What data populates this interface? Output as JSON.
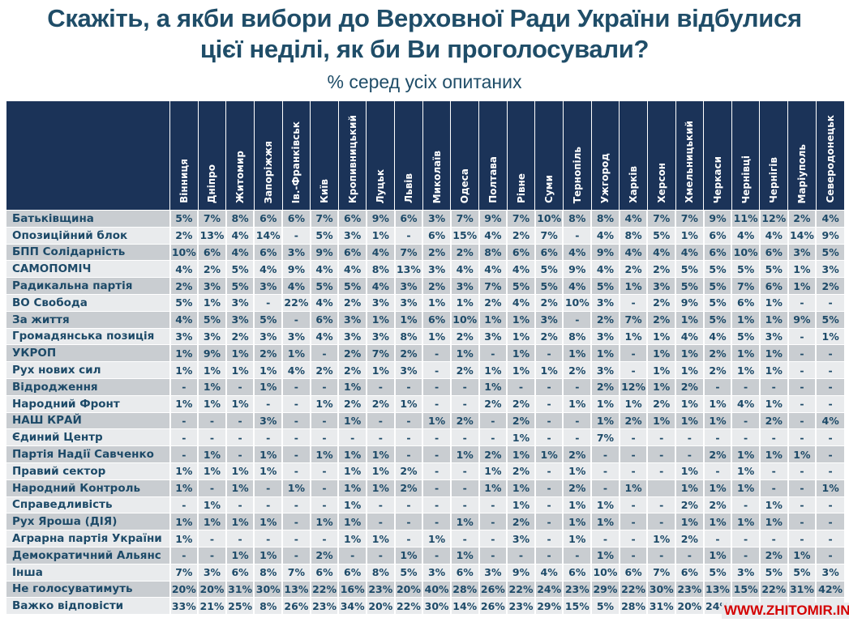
{
  "title_line1": "Скажіть, а якби вибори до Верховної Ради України відбулися",
  "title_line2": "цієї неділі, як би Ви проголосували?",
  "subtitle": "% серед усіх опитаних",
  "watermark": "WWW.ZHITOMIR.INFO",
  "chart_data": {
    "type": "table",
    "title": "Скажіть, а якби вибори до Верховної Ради України відбулися цієї неділі, як би Ви проголосували?",
    "subtitle": "% серед усіх опитаних",
    "columns": [
      "Вінниця",
      "Дніпро",
      "Житомир",
      "Запоріжжя",
      "Ів.-Франківськ",
      "Київ",
      "Кропивницький",
      "Луцьк",
      "Львів",
      "Миколаїв",
      "Одеса",
      "Полтава",
      "Рівне",
      "Суми",
      "Тернопіль",
      "Ужгород",
      "Харків",
      "Херсон",
      "Хмельницький",
      "Черкаси",
      "Чернівці",
      "Чернігів",
      "Маріуполь",
      "Северодонецьк"
    ],
    "rows": [
      {
        "label": "Батьківщина",
        "values": [
          "5%",
          "7%",
          "8%",
          "6%",
          "6%",
          "7%",
          "6%",
          "9%",
          "6%",
          "3%",
          "7%",
          "9%",
          "7%",
          "10%",
          "8%",
          "8%",
          "4%",
          "7%",
          "7%",
          "9%",
          "11%",
          "12%",
          "2%",
          "4%"
        ]
      },
      {
        "label": "Опозиційний блок",
        "values": [
          "2%",
          "13%",
          "4%",
          "14%",
          "-",
          "5%",
          "3%",
          "1%",
          "-",
          "6%",
          "15%",
          "4%",
          "2%",
          "7%",
          "-",
          "4%",
          "8%",
          "5%",
          "1%",
          "6%",
          "4%",
          "4%",
          "14%",
          "9%"
        ]
      },
      {
        "label": "БПП Солідарність",
        "values": [
          "10%",
          "6%",
          "4%",
          "6%",
          "3%",
          "9%",
          "6%",
          "4%",
          "7%",
          "2%",
          "2%",
          "8%",
          "6%",
          "6%",
          "4%",
          "9%",
          "4%",
          "4%",
          "4%",
          "6%",
          "10%",
          "6%",
          "3%",
          "5%"
        ]
      },
      {
        "label": "САМОПОМІЧ",
        "values": [
          "4%",
          "2%",
          "5%",
          "4%",
          "9%",
          "4%",
          "4%",
          "8%",
          "13%",
          "3%",
          "4%",
          "4%",
          "4%",
          "5%",
          "9%",
          "4%",
          "2%",
          "2%",
          "5%",
          "5%",
          "5%",
          "5%",
          "1%",
          "3%"
        ]
      },
      {
        "label": "Радикальна партія",
        "values": [
          "2%",
          "3%",
          "5%",
          "3%",
          "4%",
          "5%",
          "5%",
          "4%",
          "3%",
          "2%",
          "3%",
          "7%",
          "5%",
          "5%",
          "4%",
          "5%",
          "1%",
          "3%",
          "5%",
          "5%",
          "7%",
          "6%",
          "1%",
          "2%"
        ]
      },
      {
        "label": "ВО Свобода",
        "values": [
          "5%",
          "1%",
          "3%",
          "-",
          "22%",
          "4%",
          "2%",
          "3%",
          "3%",
          "1%",
          "1%",
          "2%",
          "4%",
          "2%",
          "10%",
          "3%",
          "-",
          "2%",
          "9%",
          "5%",
          "6%",
          "1%",
          "-",
          "-"
        ]
      },
      {
        "label": "За життя",
        "values": [
          "4%",
          "5%",
          "3%",
          "5%",
          "-",
          "6%",
          "3%",
          "1%",
          "1%",
          "6%",
          "10%",
          "1%",
          "1%",
          "3%",
          "-",
          "2%",
          "7%",
          "2%",
          "1%",
          "5%",
          "1%",
          "1%",
          "9%",
          "5%"
        ]
      },
      {
        "label": "Громадянська позиція",
        "values": [
          "3%",
          "3%",
          "2%",
          "3%",
          "3%",
          "4%",
          "3%",
          "3%",
          "8%",
          "1%",
          "2%",
          "3%",
          "1%",
          "2%",
          "8%",
          "3%",
          "1%",
          "1%",
          "4%",
          "4%",
          "5%",
          "3%",
          "-",
          "1%"
        ]
      },
      {
        "label": "УКРОП",
        "values": [
          "1%",
          "9%",
          "1%",
          "2%",
          "1%",
          "-",
          "2%",
          "7%",
          "2%",
          "-",
          "1%",
          "-",
          "1%",
          "-",
          "1%",
          "1%",
          "-",
          "1%",
          "1%",
          "2%",
          "1%",
          "1%",
          "-",
          "-"
        ]
      },
      {
        "label": "Рух нових сил",
        "values": [
          "1%",
          "1%",
          "1%",
          "1%",
          "4%",
          "2%",
          "2%",
          "1%",
          "3%",
          "-",
          "2%",
          "1%",
          "1%",
          "1%",
          "2%",
          "3%",
          "-",
          "1%",
          "1%",
          "2%",
          "1%",
          "1%",
          "-",
          "-"
        ]
      },
      {
        "label": "Відродження",
        "values": [
          "-",
          "1%",
          "-",
          "1%",
          "-",
          "-",
          "1%",
          "-",
          "-",
          "-",
          "-",
          "1%",
          "-",
          "-",
          "-",
          "2%",
          "12%",
          "1%",
          "2%",
          "-",
          "-",
          "-",
          "-",
          "-"
        ]
      },
      {
        "label": "Народний Фронт",
        "values": [
          "1%",
          "1%",
          "1%",
          "-",
          "-",
          "1%",
          "2%",
          "2%",
          "1%",
          "-",
          "-",
          "2%",
          "2%",
          "-",
          "1%",
          "1%",
          "1%",
          "2%",
          "1%",
          "1%",
          "4%",
          "1%",
          "-",
          "-"
        ]
      },
      {
        "label": "НАШ КРАЙ",
        "values": [
          "-",
          "-",
          "-",
          "3%",
          "-",
          "-",
          "1%",
          "-",
          "-",
          "1%",
          "2%",
          "-",
          "2%",
          "-",
          "-",
          "1%",
          "2%",
          "1%",
          "1%",
          "1%",
          "-",
          "2%",
          "-",
          "4%"
        ]
      },
      {
        "label": "Єдиний Центр",
        "values": [
          "-",
          "-",
          "-",
          "-",
          "-",
          "-",
          "-",
          "-",
          "-",
          "-",
          "-",
          "-",
          "1%",
          "-",
          "-",
          "7%",
          "-",
          "-",
          "-",
          "-",
          "-",
          "-",
          "-",
          "-"
        ]
      },
      {
        "label": "Партія Надії Савченко",
        "values": [
          "-",
          "1%",
          "-",
          "1%",
          "-",
          "1%",
          "1%",
          "1%",
          "-",
          "-",
          "1%",
          "2%",
          "1%",
          "1%",
          "2%",
          "-",
          "-",
          "-",
          "-",
          "2%",
          "1%",
          "1%",
          "1%",
          "-"
        ]
      },
      {
        "label": "Правий сектор",
        "values": [
          "1%",
          "1%",
          "1%",
          "1%",
          "-",
          "-",
          "1%",
          "1%",
          "2%",
          "-",
          "-",
          "1%",
          "2%",
          "-",
          "1%",
          "-",
          "-",
          "-",
          "1%",
          "-",
          "1%",
          "-",
          "-",
          "-"
        ]
      },
      {
        "label": "Народний Контроль",
        "values": [
          "1%",
          "-",
          "1%",
          "-",
          "1%",
          "-",
          "1%",
          "1%",
          "2%",
          "-",
          "-",
          "1%",
          "1%",
          "-",
          "2%",
          "-",
          "1%",
          "",
          "1%",
          "1%",
          "1%",
          "-",
          "-",
          "1%"
        ]
      },
      {
        "label": "Справедливість",
        "values": [
          "-",
          "1%",
          "-",
          "-",
          "-",
          "-",
          "1%",
          "-",
          "-",
          "-",
          "-",
          "-",
          "1%",
          "-",
          "1%",
          "1%",
          "-",
          "-",
          "2%",
          "2%",
          "-",
          "1%",
          "-",
          "-"
        ]
      },
      {
        "label": "Рух Яроша (ДІЯ)",
        "values": [
          "1%",
          "1%",
          "1%",
          "1%",
          "-",
          "1%",
          "1%",
          "-",
          "-",
          "-",
          "1%",
          "-",
          "2%",
          "-",
          "1%",
          "1%",
          "-",
          "-",
          "1%",
          "1%",
          "1%",
          "1%",
          "-",
          "-"
        ]
      },
      {
        "label": "Аграрна партія України",
        "values": [
          "1%",
          "-",
          "-",
          "-",
          "-",
          "-",
          "1%",
          "1%",
          "-",
          "1%",
          "-",
          "-",
          "3%",
          "-",
          "1%",
          "-",
          "-",
          "1%",
          "2%",
          "-",
          "-",
          "-",
          "-",
          "-"
        ]
      },
      {
        "label": "Демократичний Альянс",
        "values": [
          "-",
          "-",
          "1%",
          "1%",
          "-",
          "2%",
          "-",
          "-",
          "1%",
          "-",
          "1%",
          "-",
          "-",
          "-",
          "-",
          "1%",
          "-",
          "-",
          "-",
          "1%",
          "-",
          "2%",
          "1%",
          "-"
        ]
      },
      {
        "label": "Інша",
        "values": [
          "7%",
          "3%",
          "6%",
          "8%",
          "7%",
          "6%",
          "6%",
          "8%",
          "5%",
          "3%",
          "6%",
          "3%",
          "9%",
          "4%",
          "6%",
          "10%",
          "6%",
          "7%",
          "6%",
          "5%",
          "3%",
          "5%",
          "5%",
          "3%"
        ]
      },
      {
        "label": "Не голосуватимуть",
        "values": [
          "20%",
          "20%",
          "31%",
          "30%",
          "13%",
          "22%",
          "16%",
          "23%",
          "20%",
          "40%",
          "28%",
          "26%",
          "22%",
          "24%",
          "23%",
          "29%",
          "22%",
          "30%",
          "23%",
          "13%",
          "15%",
          "22%",
          "31%",
          "42%"
        ]
      },
      {
        "label": "Важко відповісти",
        "values": [
          "33%",
          "21%",
          "25%",
          "8%",
          "26%",
          "23%",
          "34%",
          "20%",
          "22%",
          "30%",
          "14%",
          "26%",
          "23%",
          "29%",
          "15%",
          "5%",
          "28%",
          "31%",
          "20%",
          "24%",
          "",
          "",
          "",
          ""
        ]
      }
    ]
  }
}
